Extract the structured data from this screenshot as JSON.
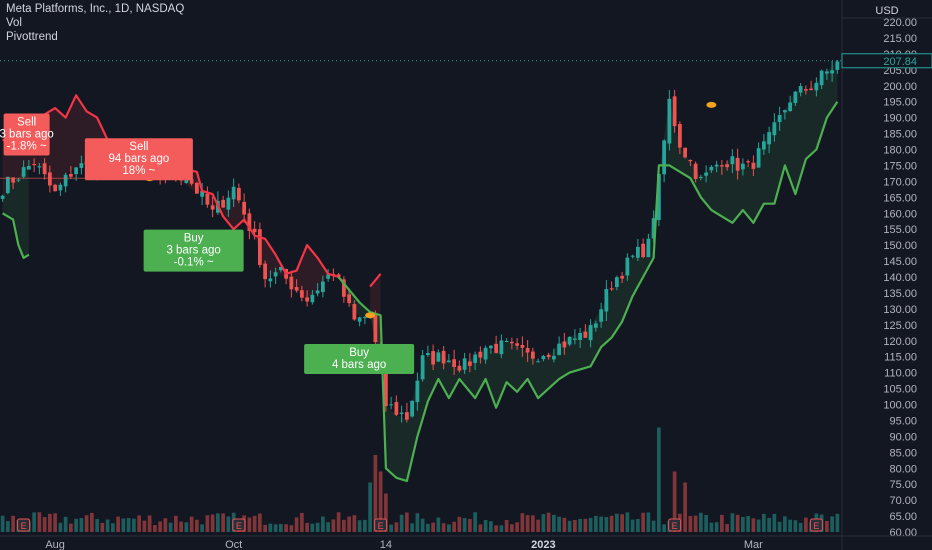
{
  "header": {
    "title": "Meta Platforms, Inc., 1D, NASDAQ",
    "indicators": [
      "Vol",
      "Pivottrend"
    ]
  },
  "currency": "USD",
  "last_price": "207.84",
  "colors": {
    "background": "#131722",
    "up": "#26a69a",
    "down": "#ef5350",
    "trend_up": "#4caf50",
    "trend_down": "#f23645",
    "pivot": "#f7a21b",
    "sell_box": "#f45b5b",
    "buy_box": "#4caf50"
  },
  "chart_data": {
    "type": "candlestick",
    "title": "Meta Platforms, Inc., 1D, NASDAQ",
    "x_tick_labels": [
      "Aug",
      "Oct",
      "14",
      "2023",
      "Mar"
    ],
    "y_tick_labels": [
      "220.00",
      "215.00",
      "210.00",
      "205.00",
      "200.00",
      "195.00",
      "190.00",
      "185.00",
      "180.00",
      "175.00",
      "170.00",
      "165.00",
      "160.00",
      "155.00",
      "150.00",
      "145.00",
      "140.00",
      "135.00",
      "130.00",
      "125.00",
      "120.00",
      "115.00",
      "110.00",
      "105.00",
      "100.00",
      "95.00",
      "90.00",
      "85.00",
      "80.00",
      "75.00",
      "70.00",
      "65.00",
      "60.00"
    ],
    "ylim": [
      60,
      222
    ],
    "n_bars": 160,
    "close_anchors": [
      [
        0,
        168
      ],
      [
        6,
        176
      ],
      [
        10,
        166
      ],
      [
        14,
        175
      ],
      [
        20,
        173
      ],
      [
        25,
        180
      ],
      [
        28,
        172
      ],
      [
        35,
        172
      ],
      [
        40,
        160
      ],
      [
        44,
        168
      ],
      [
        48,
        152
      ],
      [
        50,
        140
      ],
      [
        53,
        141
      ],
      [
        58,
        133
      ],
      [
        63,
        142
      ],
      [
        67,
        126
      ],
      [
        70,
        128
      ],
      [
        73,
        100
      ],
      [
        77,
        96
      ],
      [
        80,
        114
      ],
      [
        84,
        115
      ],
      [
        88,
        112
      ],
      [
        92,
        118
      ],
      [
        96,
        118
      ],
      [
        100,
        115
      ],
      [
        104,
        117
      ],
      [
        108,
        120
      ],
      [
        112,
        123
      ],
      [
        116,
        138
      ],
      [
        120,
        146
      ],
      [
        123,
        150
      ],
      [
        125,
        170
      ],
      [
        127,
        195
      ],
      [
        129,
        182
      ],
      [
        133,
        170
      ],
      [
        137,
        177
      ],
      [
        142,
        174
      ],
      [
        146,
        183
      ],
      [
        150,
        196
      ],
      [
        154,
        200
      ],
      [
        159,
        207
      ]
    ],
    "trend_up_segments": [
      [
        [
          0,
          160
        ],
        [
          2,
          158
        ],
        [
          3,
          150
        ],
        [
          4,
          146
        ],
        [
          5,
          147
        ]
      ],
      [
        [
          64,
          140
        ],
        [
          66,
          136
        ],
        [
          68,
          132
        ],
        [
          70,
          129
        ],
        [
          72,
          128
        ],
        [
          73,
          80
        ],
        [
          75,
          77
        ],
        [
          77,
          76
        ],
        [
          79,
          90
        ],
        [
          81,
          101
        ],
        [
          83,
          108
        ],
        [
          85,
          102
        ],
        [
          87,
          108
        ],
        [
          90,
          102
        ],
        [
          92,
          108
        ],
        [
          94,
          99
        ],
        [
          96,
          107
        ],
        [
          98,
          104
        ],
        [
          100,
          108
        ],
        [
          102,
          102
        ],
        [
          104,
          105
        ],
        [
          106,
          108
        ],
        [
          108,
          110
        ],
        [
          110,
          111
        ],
        [
          112,
          112
        ],
        [
          114,
          118
        ],
        [
          116,
          121
        ],
        [
          118,
          126
        ],
        [
          120,
          134
        ],
        [
          122,
          140
        ],
        [
          124,
          146
        ],
        [
          125,
          175
        ],
        [
          127,
          175
        ],
        [
          129,
          173
        ],
        [
          131,
          171
        ],
        [
          133,
          165
        ],
        [
          135,
          161
        ],
        [
          137,
          159
        ],
        [
          139,
          157
        ],
        [
          141,
          161
        ],
        [
          143,
          157
        ],
        [
          145,
          163
        ],
        [
          147,
          163
        ],
        [
          149,
          175
        ],
        [
          151,
          166
        ],
        [
          153,
          177
        ],
        [
          155,
          180
        ],
        [
          157,
          190
        ],
        [
          159,
          195
        ]
      ]
    ],
    "trend_down_segments": [
      [
        [
          0,
          183
        ],
        [
          3,
          182
        ],
        [
          5,
          184
        ],
        [
          7,
          190
        ],
        [
          10,
          193
        ],
        [
          12,
          190
        ],
        [
          14,
          197
        ],
        [
          16,
          192
        ],
        [
          18,
          190
        ],
        [
          20,
          183
        ],
        [
          22,
          179
        ],
        [
          24,
          177
        ],
        [
          26,
          175
        ],
        [
          28,
          178
        ],
        [
          30,
          174
        ],
        [
          32,
          172
        ],
        [
          34,
          174
        ],
        [
          37,
          173
        ],
        [
          38,
          167
        ],
        [
          40,
          166
        ],
        [
          42,
          159
        ],
        [
          44,
          155
        ],
        [
          46,
          158
        ],
        [
          48,
          153
        ],
        [
          50,
          152
        ],
        [
          52,
          147
        ],
        [
          54,
          141
        ],
        [
          56,
          142
        ],
        [
          58,
          150
        ],
        [
          60,
          146
        ],
        [
          62,
          141
        ],
        [
          64,
          140
        ]
      ],
      [
        [
          70,
          137
        ],
        [
          72,
          141
        ]
      ]
    ],
    "pivots": [
      [
        28,
        171
      ],
      [
        70,
        128
      ],
      [
        135,
        194
      ]
    ],
    "signals": [
      {
        "type": "sell",
        "lines": [
          "Sell",
          "3 bars ago",
          "-1.8% ~"
        ],
        "bar": 4,
        "price": 175
      },
      {
        "type": "sell",
        "lines": [
          "Sell",
          "94 bars ago",
          "18% ~"
        ],
        "bar": 29,
        "price": 171
      },
      {
        "type": "buy",
        "lines": [
          "Buy",
          "3 bars ago",
          "-0.1% ~"
        ],
        "bar": 36,
        "price": 158
      },
      {
        "type": "buy",
        "lines": [
          "Buy",
          "4 bars ago"
        ],
        "bar": 70,
        "price": 124
      }
    ],
    "earnings_markers": [
      "E",
      "E",
      "E",
      "E",
      "E"
    ],
    "volume_spikes": [
      [
        70,
        0.45
      ],
      [
        71,
        0.7
      ],
      [
        72,
        0.55
      ],
      [
        73,
        0.35
      ],
      [
        128,
        0.55
      ],
      [
        125,
        0.95
      ],
      [
        130,
        0.45
      ]
    ],
    "grid": false
  }
}
